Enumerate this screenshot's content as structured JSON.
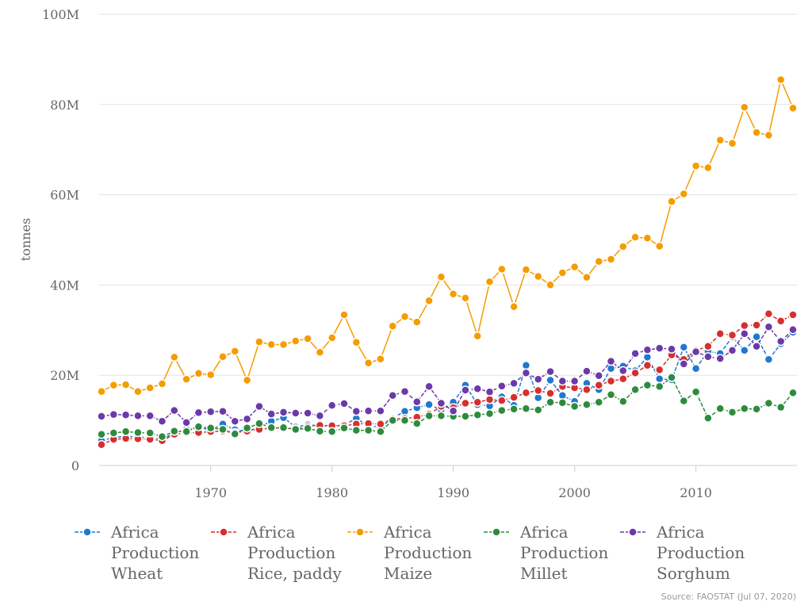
{
  "chart_data": {
    "type": "line",
    "title": "",
    "xlabel": "",
    "ylabel": "tonnes",
    "xlim": [
      1961,
      2018
    ],
    "ylim": [
      0,
      100000000
    ],
    "x_ticks": [
      1970,
      1980,
      1990,
      2000,
      2010
    ],
    "x_tick_labels": [
      "1970",
      "1980",
      "1990",
      "2000",
      "2010"
    ],
    "y_ticks": [
      0,
      20000000,
      40000000,
      60000000,
      80000000,
      100000000
    ],
    "y_tick_labels": [
      "0",
      "20M",
      "40M",
      "60M",
      "80M",
      "100M"
    ],
    "grid": "horizontal",
    "legend_position": "bottom",
    "x": [
      1961,
      1962,
      1963,
      1964,
      1965,
      1966,
      1967,
      1968,
      1969,
      1970,
      1971,
      1972,
      1973,
      1974,
      1975,
      1976,
      1977,
      1978,
      1979,
      1980,
      1981,
      1982,
      1983,
      1984,
      1985,
      1986,
      1987,
      1988,
      1989,
      1990,
      1991,
      1992,
      1993,
      1994,
      1995,
      1996,
      1997,
      1998,
      1999,
      2000,
      2001,
      2002,
      2003,
      2004,
      2005,
      2006,
      2007,
      2008,
      2009,
      2010,
      2011,
      2012,
      2013,
      2014,
      2015,
      2016,
      2017,
      2018
    ],
    "series": [
      {
        "name": "Africa Production Wheat",
        "color": "#1f78d1",
        "values": [
          5.5,
          6.2,
          6.5,
          6.3,
          6.2,
          5.8,
          7.2,
          8.0,
          8.5,
          7.8,
          9.2,
          7.9,
          7.5,
          8.5,
          9.8,
          10.6,
          8.5,
          9.0,
          8.8,
          8.7,
          9.0,
          10.4,
          8.8,
          8.5,
          10.5,
          12.0,
          12.8,
          13.5,
          12.3,
          14.0,
          17.8,
          13.5,
          13.2,
          15.2,
          13.3,
          22.2,
          15.0,
          18.9,
          15.5,
          14.2,
          18.2,
          16.8,
          21.5,
          22.0,
          21.0,
          24.0,
          19.2,
          19.0,
          26.2,
          21.5,
          25.3,
          24.8,
          28.5,
          25.5,
          28.5,
          23.5,
          27.0,
          29.5
        ]
      },
      {
        "name": "Africa Production Rice, paddy",
        "color": "#d62f2f",
        "values": [
          4.6,
          5.8,
          6.0,
          5.9,
          5.8,
          5.5,
          6.9,
          7.2,
          7.3,
          7.5,
          7.6,
          7.3,
          7.6,
          8.0,
          8.3,
          8.3,
          8.1,
          8.6,
          8.9,
          8.8,
          8.8,
          9.2,
          9.3,
          9.2,
          10.3,
          10.4,
          10.7,
          11.4,
          13.1,
          12.8,
          13.8,
          14.0,
          14.6,
          14.4,
          15.1,
          16.1,
          16.6,
          16.0,
          17.5,
          17.2,
          16.8,
          17.8,
          18.7,
          19.2,
          20.5,
          22.2,
          21.2,
          24.5,
          23.5,
          25.5,
          26.4,
          29.2,
          28.9,
          31.0,
          31.1,
          33.6,
          32.0,
          33.4
        ]
      },
      {
        "name": "Africa Production Maize",
        "color": "#f59c00",
        "values": [
          16.4,
          17.8,
          17.9,
          16.4,
          17.2,
          18.1,
          24.0,
          19.1,
          20.4,
          20.1,
          24.1,
          25.3,
          18.9,
          27.4,
          26.8,
          26.8,
          27.6,
          28.1,
          25.1,
          28.3,
          33.4,
          27.3,
          22.7,
          23.6,
          30.9,
          33.0,
          31.8,
          36.5,
          41.8,
          38.0,
          37.1,
          28.7,
          40.7,
          43.5,
          35.2,
          43.4,
          41.9,
          40.0,
          42.7,
          44.0,
          41.7,
          45.2,
          45.7,
          48.5,
          50.6,
          50.4,
          48.6,
          58.5,
          60.2,
          66.4,
          66.0,
          72.1,
          71.4,
          79.4,
          73.8,
          73.2,
          85.5,
          79.2
        ]
      },
      {
        "name": "Africa Production Millet",
        "color": "#2e8b3e",
        "values": [
          6.9,
          7.2,
          7.5,
          7.3,
          7.2,
          6.4,
          7.6,
          7.5,
          8.6,
          8.3,
          8.0,
          7.0,
          8.3,
          9.3,
          8.4,
          8.4,
          8.0,
          8.2,
          7.6,
          7.5,
          8.3,
          7.8,
          7.8,
          7.5,
          10.0,
          10.0,
          9.3,
          11.0,
          11.0,
          10.9,
          10.9,
          11.2,
          11.5,
          12.2,
          12.5,
          12.6,
          12.3,
          14.0,
          13.9,
          13.1,
          13.5,
          14.0,
          15.7,
          14.2,
          16.8,
          17.8,
          17.5,
          19.5,
          14.3,
          16.3,
          10.5,
          12.6,
          11.8,
          12.6,
          12.5,
          13.8,
          12.9,
          16.1
        ]
      },
      {
        "name": "Africa Production Sorghum",
        "color": "#6b3aa8",
        "values": [
          10.9,
          11.3,
          11.2,
          11.0,
          11.0,
          9.8,
          12.2,
          9.5,
          11.7,
          11.9,
          12.0,
          9.8,
          10.3,
          13.1,
          11.4,
          11.8,
          11.6,
          11.6,
          11.0,
          13.3,
          13.7,
          12.0,
          12.1,
          12.1,
          15.5,
          16.4,
          14.1,
          17.5,
          13.8,
          12.1,
          16.7,
          17.0,
          16.3,
          17.6,
          18.2,
          20.5,
          19.1,
          20.8,
          18.7,
          18.7,
          20.9,
          19.9,
          23.1,
          21.0,
          24.8,
          25.6,
          26.0,
          25.8,
          22.5,
          25.2,
          24.1,
          23.7,
          25.5,
          29.2,
          26.4,
          30.7,
          27.5,
          30.1
        ]
      }
    ],
    "value_units": "million tonnes",
    "source": "Source: FAOSTAT (Jul 07, 2020)"
  }
}
